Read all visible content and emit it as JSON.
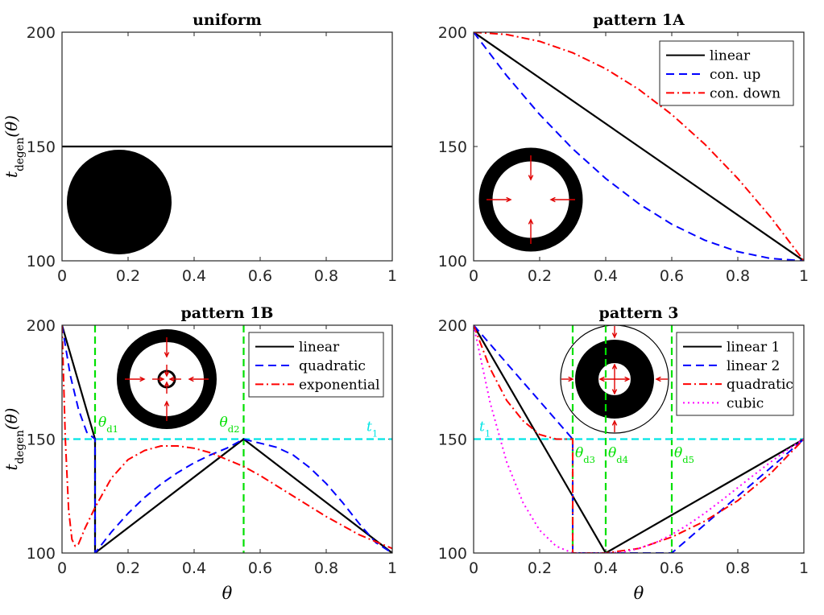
{
  "chart_data": [
    {
      "type": "line",
      "title": "uniform",
      "xlabel": "",
      "ylabel": "t_degen(θ)",
      "xlim": [
        0,
        1
      ],
      "ylim": [
        100,
        200
      ],
      "xticks": [
        "0",
        "0.2",
        "0.4",
        "0.6",
        "0.8",
        "1"
      ],
      "yticks": [
        "100",
        "150",
        "200"
      ],
      "grid": false,
      "legend": null,
      "series": [
        {
          "color": "#000000",
          "dash": "solid",
          "x": [
            0,
            1
          ],
          "y": [
            150,
            150
          ]
        }
      ],
      "inset": "filled-disk"
    },
    {
      "type": "line",
      "title": "pattern 1A",
      "xlabel": "",
      "ylabel": "",
      "xlim": [
        0,
        1
      ],
      "ylim": [
        100,
        200
      ],
      "xticks": [
        "0",
        "0.2",
        "0.4",
        "0.6",
        "0.8",
        "1"
      ],
      "yticks": [
        "100",
        "150",
        "200"
      ],
      "grid": false,
      "legend": "top-right",
      "series": [
        {
          "name": "linear",
          "color": "#000000",
          "dash": "solid",
          "x": [
            0,
            1
          ],
          "y": [
            200,
            100
          ]
        },
        {
          "name": "con. up",
          "color": "#0000ff",
          "dash": "dashed",
          "x": [
            0,
            0.1,
            0.2,
            0.3,
            0.4,
            0.5,
            0.6,
            0.7,
            0.8,
            0.9,
            1.0
          ],
          "y": [
            200,
            181,
            164,
            149,
            136,
            125,
            116,
            109,
            104,
            101,
            100
          ]
        },
        {
          "name": "con. down",
          "color": "#ff0000",
          "dash": "dashdot",
          "x": [
            0,
            0.1,
            0.2,
            0.3,
            0.4,
            0.5,
            0.6,
            0.7,
            0.8,
            0.9,
            1.0
          ],
          "y": [
            200,
            199,
            196,
            191,
            184,
            175,
            164,
            151,
            136,
            119,
            100
          ]
        }
      ],
      "inset": "ring-inward-arrows"
    },
    {
      "type": "line",
      "title": "pattern 1B",
      "xlabel": "θ",
      "ylabel": "t_degen(θ)",
      "xlim": [
        0,
        1
      ],
      "ylim": [
        100,
        200
      ],
      "xticks": [
        "0",
        "0.2",
        "0.4",
        "0.6",
        "0.8",
        "1"
      ],
      "yticks": [
        "100",
        "150",
        "200"
      ],
      "grid": false,
      "legend": "top-right",
      "series": [
        {
          "name": "linear",
          "color": "#000000",
          "dash": "solid",
          "x": [
            0,
            0.1,
            0.1,
            0.55,
            1.0
          ],
          "y": [
            200,
            150,
            100,
            150,
            100
          ]
        },
        {
          "name": "quadratic",
          "color": "#0000ff",
          "dash": "dashed",
          "x": [
            0,
            0.025,
            0.05,
            0.075,
            0.1,
            0.1,
            0.15,
            0.2,
            0.25,
            0.3,
            0.35,
            0.4,
            0.45,
            0.5,
            0.55,
            0.6,
            0.65,
            0.7,
            0.75,
            0.8,
            0.85,
            0.9,
            0.95,
            1.0
          ],
          "y": [
            200,
            178,
            163,
            153,
            150,
            100,
            109.3,
            117.4,
            124.4,
            130.3,
            135.3,
            139.6,
            143.1,
            146.1,
            150,
            148.2,
            146.4,
            143.0,
            137.5,
            130.5,
            122.1,
            112.9,
            104.6,
            100
          ]
        },
        {
          "name": "exponential",
          "color": "#ff0000",
          "dash": "dashdot",
          "x": [
            0,
            0.01,
            0.02,
            0.03,
            0.04,
            0.05,
            0.07,
            0.1,
            0.15,
            0.2,
            0.25,
            0.3,
            0.35,
            0.4,
            0.45,
            0.5,
            0.55,
            0.6,
            0.7,
            0.8,
            0.9,
            1.0
          ],
          "y": [
            200,
            150,
            119,
            106,
            103,
            104,
            111,
            120,
            133,
            141,
            145,
            147,
            147,
            146,
            144,
            141,
            138,
            134,
            125,
            116,
            108,
            102
          ]
        }
      ],
      "reference_lines": [
        {
          "orientation": "vertical",
          "value": 0.1,
          "color": "#00e000",
          "label": "θ_d1"
        },
        {
          "orientation": "vertical",
          "value": 0.55,
          "color": "#00e000",
          "label": "θ_d2"
        },
        {
          "orientation": "horizontal",
          "value": 150,
          "color": "#00e5e5",
          "label": "t_1"
        }
      ],
      "inset": "ring-with-inner-circle-arrows"
    },
    {
      "type": "line",
      "title": "pattern 3",
      "xlabel": "θ",
      "ylabel": "",
      "xlim": [
        0,
        1
      ],
      "ylim": [
        100,
        200
      ],
      "xticks": [
        "0",
        "0.2",
        "0.4",
        "0.6",
        "0.8",
        "1"
      ],
      "yticks": [
        "100",
        "150",
        "200"
      ],
      "grid": false,
      "legend": "top-right",
      "series": [
        {
          "name": "linear 1",
          "color": "#000000",
          "dash": "solid",
          "x": [
            0,
            0.3,
            0.4,
            1.0
          ],
          "y": [
            200,
            125,
            100,
            150
          ]
        },
        {
          "name": "linear 2",
          "color": "#0000ff",
          "dash": "dashed",
          "x": [
            0,
            0.3,
            0.3,
            0.6,
            1.0
          ],
          "y": [
            200,
            150,
            100,
            100,
            150
          ]
        },
        {
          "name": "quadratic",
          "color": "#ff0000",
          "dash": "dashdot",
          "x": [
            0,
            0.05,
            0.1,
            0.15,
            0.2,
            0.25,
            0.3,
            0.3,
            0.4,
            0.5,
            0.6,
            0.7,
            0.8,
            0.9,
            1.0
          ],
          "y": [
            200,
            181,
            167,
            158,
            152,
            150,
            150,
            100,
            100,
            102,
            107,
            114,
            123,
            135,
            150
          ]
        },
        {
          "name": "cubic",
          "color": "#ff00ff",
          "dash": "dotted",
          "x": [
            0,
            0.05,
            0.1,
            0.15,
            0.2,
            0.25,
            0.3,
            0.35,
            0.4,
            0.45,
            0.5,
            0.55,
            0.6,
            0.65,
            0.7,
            0.75,
            0.8,
            0.85,
            0.9,
            0.95,
            1.0
          ],
          "y": [
            200,
            166,
            140,
            122,
            110,
            103,
            100,
            100,
            100,
            100.3,
            102.0,
            104.5,
            108.1,
            112.5,
            117.5,
            123.0,
            128.7,
            134.4,
            140.0,
            145.3,
            150
          ]
        }
      ],
      "reference_lines": [
        {
          "orientation": "vertical",
          "value": 0.3,
          "color": "#00e000",
          "label": "θ_d3"
        },
        {
          "orientation": "vertical",
          "value": 0.4,
          "color": "#00e000",
          "label": "θ_d4"
        },
        {
          "orientation": "vertical",
          "value": 0.6,
          "color": "#00e000",
          "label": "θ_d5"
        },
        {
          "orientation": "horizontal",
          "value": 150,
          "color": "#00e5e5",
          "label": "t_1"
        }
      ],
      "inset": "thick-ring-with-outer-circle-arrows"
    }
  ]
}
